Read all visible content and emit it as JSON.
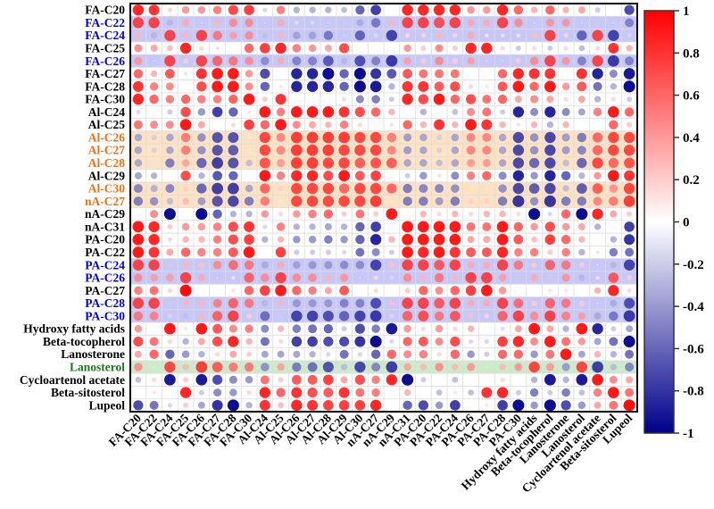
{
  "chart_data": {
    "type": "heatmap",
    "style": "circle correlation matrix",
    "title": "",
    "xlabel": "",
    "ylabel": "",
    "value_range": [
      -1,
      1
    ],
    "rows": [
      {
        "label": "FA-C20",
        "color": "#000000",
        "highlight": null
      },
      {
        "label": "FA-C22",
        "color": "#0000e0",
        "highlight": "blue"
      },
      {
        "label": "FA-C24",
        "color": "#0000e0",
        "highlight": "blue"
      },
      {
        "label": "FA-C25",
        "color": "#000000",
        "highlight": null
      },
      {
        "label": "FA-C26",
        "color": "#0000e0",
        "highlight": "blue"
      },
      {
        "label": "FA-C27",
        "color": "#000000",
        "highlight": null
      },
      {
        "label": "FA-C28",
        "color": "#000000",
        "highlight": null
      },
      {
        "label": "FA-C30",
        "color": "#000000",
        "highlight": null
      },
      {
        "label": "Al-C24",
        "color": "#000000",
        "highlight": null
      },
      {
        "label": "Al-C25",
        "color": "#000000",
        "highlight": null
      },
      {
        "label": "Al-C26",
        "color": "#f07010",
        "highlight": "orange"
      },
      {
        "label": "Al-C27",
        "color": "#f07010",
        "highlight": "orange"
      },
      {
        "label": "Al-C28",
        "color": "#f07010",
        "highlight": "orange"
      },
      {
        "label": "Al-C29",
        "color": "#000000",
        "highlight": null
      },
      {
        "label": "Al-C30",
        "color": "#f07010",
        "highlight": "orange"
      },
      {
        "label": "nA-C27",
        "color": "#f07010",
        "highlight": "orange"
      },
      {
        "label": "nA-C29",
        "color": "#000000",
        "highlight": null
      },
      {
        "label": "nA-C31",
        "color": "#000000",
        "highlight": null
      },
      {
        "label": "PA-C20",
        "color": "#000000",
        "highlight": null
      },
      {
        "label": "PA-C22",
        "color": "#000000",
        "highlight": null
      },
      {
        "label": "PA-C24",
        "color": "#0000e0",
        "highlight": "blue"
      },
      {
        "label": "PA-C26",
        "color": "#0000e0",
        "highlight": "blue"
      },
      {
        "label": "PA-C27",
        "color": "#000000",
        "highlight": null
      },
      {
        "label": "PA-C28",
        "color": "#0000e0",
        "highlight": "blue"
      },
      {
        "label": "PA-C30",
        "color": "#0000e0",
        "highlight": "blue"
      },
      {
        "label": "Hydroxy fatty acids",
        "color": "#000000",
        "highlight": null
      },
      {
        "label": "Beta-tocopherol",
        "color": "#000000",
        "highlight": null
      },
      {
        "label": "Lanosterone",
        "color": "#000000",
        "highlight": null
      },
      {
        "label": "Lanosterol",
        "color": "#1a7a1a",
        "highlight": "green"
      },
      {
        "label": "Cycloartenol acetate",
        "color": "#000000",
        "highlight": null
      },
      {
        "label": "Beta-sitosterol",
        "color": "#000000",
        "highlight": null
      },
      {
        "label": "Lupeol",
        "color": "#000000",
        "highlight": null
      }
    ],
    "columns": [
      "FA-C20",
      "FA-C22",
      "FA-C24",
      "FA-C25",
      "FA-C26",
      "FA-C27",
      "FA-C28",
      "FA-C30",
      "Al-C24",
      "Al-C25",
      "Al-C26",
      "Al-C27",
      "Al-C28",
      "Al-C29",
      "Al-C30",
      "nA-C27",
      "nA-C29",
      "nA-C31",
      "PA-C20",
      "PA-C22",
      "PA-C24",
      "PA-C26",
      "PA-C27",
      "PA-C28",
      "PA-C30",
      "Hydroxy fatty acids",
      "Beta-tocopherol",
      "Lanosterone",
      "Lanosterol",
      "Cycloartenol acetate",
      "Beta-sitosterol",
      "Lupeol"
    ],
    "values": [
      [
        0.85,
        0.8,
        0.15,
        0.4,
        0.4,
        0.5,
        0.7,
        0.75,
        -0.15,
        0.5,
        -0.3,
        -0.3,
        -0.3,
        -0.25,
        -0.6,
        -0.75,
        0.0,
        0.85,
        0.85,
        0.85,
        0.85,
        0.4,
        0.4,
        0.85,
        0.6,
        0.3,
        0.6,
        0.3,
        0.35,
        -0.2,
        0.0,
        -0.7
      ],
      [
        0.85,
        0.85,
        -0.3,
        0.35,
        0.0,
        0.3,
        0.5,
        0.5,
        0.0,
        0.35,
        -0.1,
        -0.1,
        0.0,
        -0.2,
        -0.35,
        -0.6,
        0.3,
        0.85,
        0.85,
        0.8,
        0.85,
        0.35,
        0.35,
        0.85,
        0.5,
        0.0,
        0.45,
        0.45,
        0.0,
        -0.2,
        0.0,
        -0.55
      ],
      [
        0.3,
        -0.3,
        0.85,
        0.3,
        0.85,
        0.6,
        0.4,
        0.5,
        -0.25,
        0.3,
        -0.4,
        -0.4,
        -0.6,
        0.0,
        -0.7,
        -0.15,
        -0.85,
        0.15,
        0.15,
        0.3,
        0.15,
        0.35,
        0.1,
        0.1,
        0.1,
        0.25,
        0.85,
        0.15,
        -0.7,
        0.85,
        -0.85,
        -0.15
      ],
      [
        0.45,
        0.35,
        0.25,
        0.85,
        0.15,
        -0.1,
        0.0,
        0.6,
        0.75,
        0.85,
        0.5,
        0.4,
        0.35,
        0.7,
        0.0,
        0.0,
        0.0,
        0.4,
        0.2,
        0.45,
        0.2,
        0.85,
        0.85,
        0.15,
        -0.2,
        0.15,
        -0.2,
        0.15,
        -0.25,
        0.15,
        0.8,
        0.3
      ],
      [
        0.45,
        0.0,
        0.85,
        0.2,
        0.85,
        0.7,
        0.6,
        0.5,
        -0.5,
        0.35,
        -0.55,
        -0.55,
        -0.75,
        -0.3,
        -0.8,
        -0.55,
        -0.9,
        0.4,
        0.2,
        0.5,
        0.2,
        0.4,
        0.0,
        0.0,
        0.2,
        0.5,
        0.85,
        0.45,
        -0.55,
        0.85,
        -0.9,
        -0.55
      ],
      [
        0.6,
        0.3,
        0.65,
        -0.1,
        0.8,
        0.9,
        0.9,
        0.4,
        -0.7,
        0.0,
        -0.85,
        -0.85,
        -0.95,
        -0.6,
        -0.95,
        -0.8,
        -0.65,
        0.65,
        0.55,
        0.55,
        0.55,
        0.0,
        0.0,
        0.6,
        0.85,
        0.8,
        0.8,
        0.0,
        0.8,
        -0.85,
        -0.45,
        -0.9
      ],
      [
        0.8,
        0.5,
        0.45,
        0.0,
        0.7,
        0.9,
        0.9,
        0.45,
        -0.6,
        0.1,
        -0.85,
        -0.85,
        -0.85,
        -0.6,
        -0.95,
        -0.9,
        -0.3,
        0.8,
        0.8,
        0.65,
        0.7,
        0.15,
        0.1,
        0.65,
        0.9,
        0.6,
        0.9,
        0.4,
        0.65,
        -0.55,
        -0.3,
        -0.95
      ],
      [
        0.85,
        0.6,
        0.5,
        0.6,
        0.5,
        0.5,
        0.6,
        0.9,
        0.2,
        0.8,
        0.0,
        0.0,
        0.0,
        0.15,
        -0.45,
        -0.5,
        -0.2,
        0.85,
        0.7,
        0.9,
        0.6,
        0.7,
        0.55,
        0.6,
        0.35,
        0.45,
        0.35,
        0.15,
        0.35,
        -0.3,
        0.15,
        -0.2
      ],
      [
        -0.15,
        0.0,
        -0.2,
        0.7,
        -0.4,
        -0.75,
        -0.6,
        0.1,
        0.9,
        0.5,
        0.9,
        0.9,
        0.9,
        0.8,
        0.7,
        0.6,
        0.3,
        0.0,
        -0.3,
        0.0,
        -0.25,
        0.45,
        0.55,
        -0.2,
        -0.85,
        -0.45,
        -0.85,
        -0.45,
        -0.35,
        0.5,
        0.9,
        0.6
      ],
      [
        0.55,
        0.45,
        0.45,
        0.9,
        0.35,
        0.0,
        0.15,
        0.75,
        0.6,
        0.9,
        0.45,
        0.35,
        0.3,
        0.5,
        0.15,
        0.0,
        -0.1,
        0.6,
        0.3,
        0.8,
        0.3,
        0.9,
        0.8,
        0.3,
        -0.1,
        0.3,
        -0.3,
        0.3,
        0.0,
        0.0,
        0.6,
        0.2
      ],
      [
        -0.4,
        -0.2,
        -0.4,
        0.6,
        -0.5,
        -0.8,
        -0.8,
        0.1,
        0.85,
        0.55,
        0.9,
        0.9,
        0.9,
        0.9,
        0.85,
        0.85,
        0.6,
        -0.45,
        -0.4,
        -0.2,
        -0.4,
        0.55,
        0.55,
        -0.4,
        -0.85,
        -0.5,
        -0.85,
        -0.45,
        -0.6,
        0.7,
        0.85,
        0.85
      ],
      [
        -0.4,
        -0.2,
        -0.4,
        0.6,
        -0.5,
        -0.8,
        -0.75,
        0.1,
        0.85,
        0.55,
        0.9,
        0.9,
        0.9,
        0.85,
        0.85,
        0.85,
        0.55,
        -0.45,
        -0.4,
        -0.2,
        -0.4,
        0.55,
        0.55,
        -0.4,
        -0.85,
        -0.5,
        -0.85,
        -0.45,
        -0.55,
        0.7,
        0.85,
        0.85
      ],
      [
        -0.4,
        -0.1,
        -0.6,
        0.4,
        -0.7,
        -0.9,
        -0.8,
        -0.3,
        0.8,
        0.45,
        0.9,
        0.9,
        0.85,
        0.85,
        0.75,
        0.8,
        0.75,
        -0.4,
        -0.4,
        -0.3,
        -0.4,
        0.45,
        0.45,
        -0.4,
        -0.85,
        -0.7,
        -0.85,
        -0.3,
        -0.7,
        0.85,
        0.7,
        0.8
      ],
      [
        -0.35,
        -0.3,
        0.0,
        0.7,
        -0.3,
        -0.65,
        -0.6,
        0.0,
        0.9,
        0.5,
        0.85,
        0.85,
        0.7,
        0.9,
        0.65,
        0.75,
        0.0,
        -0.2,
        -0.4,
        -0.1,
        -0.45,
        0.5,
        0.6,
        -0.45,
        -0.85,
        -0.4,
        -0.85,
        -0.6,
        -0.3,
        0.4,
        0.9,
        0.8
      ],
      [
        -0.55,
        -0.35,
        -0.55,
        0.2,
        -0.7,
        -0.9,
        -0.9,
        -0.4,
        0.7,
        0.2,
        0.85,
        0.85,
        0.85,
        0.7,
        0.85,
        0.85,
        0.7,
        -0.6,
        -0.55,
        -0.55,
        -0.5,
        0.0,
        0.0,
        -0.5,
        -0.85,
        -0.75,
        -0.85,
        -0.3,
        -0.75,
        0.75,
        0.5,
        0.85
      ],
      [
        -0.6,
        -0.5,
        -0.3,
        0.3,
        -0.45,
        -0.8,
        -0.85,
        -0.6,
        0.6,
        0.1,
        0.85,
        0.85,
        0.85,
        0.85,
        0.85,
        0.9,
        0.0,
        -0.6,
        -0.6,
        -0.45,
        -0.6,
        0.2,
        0.2,
        -0.6,
        -0.95,
        -0.5,
        -0.95,
        -0.6,
        -0.6,
        0.55,
        0.6,
        0.9
      ],
      [
        0.0,
        0.45,
        -0.95,
        0.0,
        -0.95,
        -0.6,
        -0.3,
        -0.3,
        0.4,
        0.15,
        0.4,
        0.5,
        0.6,
        0.2,
        0.55,
        0.2,
        0.9,
        0.0,
        0.3,
        0.15,
        0.3,
        0.15,
        0.3,
        0.3,
        0.15,
        -0.95,
        -0.15,
        0.6,
        -0.95,
        0.85,
        0.35,
        0.2
      ],
      [
        0.9,
        0.85,
        0.2,
        0.4,
        0.4,
        0.5,
        0.7,
        0.8,
        -0.15,
        0.5,
        -0.3,
        -0.3,
        -0.35,
        -0.3,
        -0.6,
        -0.75,
        0.0,
        0.9,
        0.9,
        0.9,
        0.9,
        0.55,
        0.55,
        0.9,
        0.6,
        0.4,
        0.7,
        0.4,
        0.35,
        -0.3,
        0.0,
        -0.75
      ],
      [
        0.9,
        0.85,
        0.15,
        0.3,
        0.3,
        0.5,
        0.7,
        0.75,
        -0.3,
        0.3,
        -0.4,
        -0.4,
        -0.5,
        -0.4,
        -0.6,
        -0.85,
        0.3,
        0.9,
        0.9,
        0.9,
        0.9,
        0.35,
        0.35,
        0.9,
        0.65,
        0.25,
        0.75,
        0.6,
        0.3,
        0.0,
        -0.3,
        -0.8
      ],
      [
        0.9,
        0.8,
        0.35,
        0.6,
        0.5,
        0.5,
        0.65,
        0.9,
        0.0,
        0.75,
        -0.2,
        -0.2,
        -0.2,
        -0.15,
        -0.55,
        -0.45,
        -0.2,
        0.9,
        0.85,
        0.9,
        0.8,
        0.65,
        0.65,
        0.85,
        0.5,
        0.5,
        0.2,
        0.5,
        -0.3,
        -0.1,
        -0.5,
        -0.55
      ],
      [
        0.85,
        0.85,
        -0.2,
        0.3,
        0.25,
        0.5,
        0.65,
        0.6,
        -0.35,
        0.35,
        -0.4,
        -0.45,
        -0.45,
        -0.5,
        -0.5,
        -0.85,
        0.25,
        0.85,
        0.85,
        0.75,
        0.85,
        0.35,
        0.35,
        0.85,
        0.6,
        0.2,
        0.7,
        0.6,
        0.2,
        0.0,
        -0.3,
        -0.85
      ],
      [
        0.5,
        0.4,
        0.4,
        0.85,
        0.35,
        0.0,
        0.1,
        0.7,
        0.5,
        0.85,
        0.5,
        0.5,
        0.3,
        0.45,
        0.0,
        0.15,
        -0.15,
        0.5,
        0.3,
        0.6,
        0.3,
        0.85,
        0.85,
        0.4,
        -0.2,
        0.35,
        -0.2,
        0.45,
        -0.3,
        0.1,
        0.75,
        0.2
      ],
      [
        0.5,
        0.55,
        0.15,
        0.95,
        0.0,
        0.0,
        0.1,
        0.6,
        0.75,
        0.9,
        0.6,
        0.5,
        0.35,
        0.65,
        0.0,
        0.15,
        0.0,
        0.2,
        0.6,
        0.45,
        0.6,
        0.75,
        0.9,
        0.4,
        0.0,
        0.0,
        0.1,
        0.1,
        0.0,
        0.3,
        0.85,
        0.15
      ],
      [
        0.85,
        0.85,
        -0.2,
        0.3,
        0.3,
        0.55,
        0.7,
        0.6,
        -0.3,
        0.3,
        -0.45,
        -0.45,
        -0.45,
        -0.55,
        -0.55,
        -0.8,
        0.25,
        0.85,
        0.85,
        0.75,
        0.85,
        0.35,
        0.35,
        0.85,
        0.65,
        0.2,
        0.7,
        0.6,
        0.2,
        0.0,
        -0.35,
        -0.8
      ],
      [
        0.6,
        0.55,
        -0.15,
        -0.25,
        0.3,
        0.7,
        0.85,
        0.2,
        -0.65,
        -0.2,
        -0.85,
        -0.85,
        -0.8,
        -0.7,
        -0.85,
        -0.9,
        -0.15,
        0.7,
        0.8,
        0.6,
        0.75,
        0.25,
        0.15,
        0.7,
        0.85,
        0.5,
        0.85,
        0.55,
        0.4,
        -0.35,
        -0.6,
        -0.9
      ],
      [
        0.4,
        0.0,
        0.9,
        0.1,
        0.9,
        0.65,
        0.45,
        0.5,
        -0.45,
        0.3,
        -0.5,
        -0.55,
        -0.6,
        -0.2,
        -0.7,
        -0.5,
        -0.9,
        0.4,
        0.15,
        0.4,
        0.15,
        0.3,
        0.0,
        0.15,
        0.35,
        0.9,
        0.35,
        -0.3,
        0.9,
        -0.85,
        -0.2,
        -0.35
      ],
      [
        0.7,
        0.55,
        0.15,
        -0.3,
        0.35,
        0.7,
        0.85,
        0.3,
        -0.55,
        0.15,
        -0.75,
        -0.75,
        -0.7,
        -0.7,
        -0.8,
        -0.95,
        -0.15,
        0.6,
        0.65,
        0.45,
        0.7,
        -0.15,
        -0.15,
        0.75,
        0.85,
        0.45,
        0.9,
        0.55,
        0.4,
        -0.35,
        -0.55,
        -0.95
      ],
      [
        0.35,
        0.6,
        -0.6,
        -0.4,
        -0.3,
        0.15,
        0.35,
        0.2,
        -0.35,
        -0.35,
        -0.35,
        -0.3,
        -0.15,
        -0.55,
        -0.15,
        -0.6,
        0.6,
        0.45,
        0.5,
        0.15,
        0.6,
        -0.4,
        -0.2,
        0.6,
        0.6,
        -0.4,
        0.55,
        0.9,
        -0.35,
        0.3,
        -0.3,
        -0.55
      ],
      [
        0.5,
        0.0,
        0.85,
        0.3,
        0.9,
        0.75,
        0.6,
        0.6,
        -0.5,
        0.4,
        -0.6,
        -0.65,
        -0.8,
        -0.3,
        -0.85,
        -0.55,
        -0.9,
        0.4,
        0.3,
        0.5,
        0.3,
        0.45,
        0.0,
        0.3,
        0.45,
        0.85,
        0.45,
        -0.45,
        0.85,
        -0.9,
        -0.3,
        -0.55
      ],
      [
        -0.25,
        0.15,
        -0.9,
        0.2,
        -0.9,
        -0.7,
        -0.45,
        -0.4,
        0.55,
        0.2,
        0.65,
        0.65,
        0.75,
        0.35,
        0.7,
        0.5,
        0.85,
        -0.95,
        -0.2,
        0.0,
        -0.25,
        0.0,
        0.0,
        0.15,
        0.0,
        -0.3,
        -0.9,
        -0.3,
        -0.9,
        0.9,
        0.45,
        0.35
      ],
      [
        0.0,
        0.1,
        0.0,
        0.85,
        -0.2,
        -0.45,
        -0.4,
        0.15,
        0.85,
        0.6,
        0.8,
        0.7,
        0.65,
        0.8,
        0.55,
        0.5,
        0.0,
        0.3,
        0.0,
        -0.25,
        0.1,
        -0.25,
        0.8,
        0.85,
        -0.2,
        -0.5,
        -0.2,
        -0.5,
        -0.25,
        0.5,
        0.9,
        0.55
      ],
      [
        -0.7,
        -0.55,
        -0.15,
        0.2,
        -0.35,
        -0.8,
        -0.95,
        -0.3,
        0.8,
        0.25,
        0.85,
        0.8,
        0.75,
        0.75,
        0.75,
        0.85,
        0.0,
        -0.6,
        -0.7,
        -0.4,
        -0.75,
        0.0,
        0.1,
        -0.75,
        -0.95,
        -0.4,
        -0.95,
        -0.7,
        -0.4,
        0.35,
        0.55,
        0.95
      ]
    ],
    "colorbar": {
      "ticks": [
        "1",
        "0.8",
        "0.6",
        "0.4",
        "0.2",
        "0",
        "-0.2",
        "-0.4",
        "-0.6",
        "-0.8",
        "-1"
      ],
      "colors": {
        "positive": "#ff0000",
        "zero": "#ffffff",
        "negative": "#00008b"
      }
    },
    "highlight_colors": {
      "blue": "#c8c8f8",
      "orange": "#fde2c4",
      "green": "#cdeacb"
    },
    "legend": "right"
  }
}
